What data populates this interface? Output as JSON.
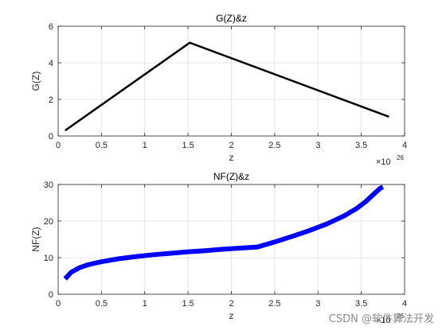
{
  "chart_data": [
    {
      "type": "line",
      "title": "G(Z)&z",
      "xlabel": "z",
      "ylabel": "G(Z)",
      "x_exponent": {
        "base": "×10",
        "power": "26"
      },
      "xlim": [
        0,
        4
      ],
      "ylim": [
        0,
        6
      ],
      "xticks": [
        0,
        0.5,
        1,
        1.5,
        2,
        2.5,
        3,
        3.5,
        4
      ],
      "xtick_labels": [
        "0",
        "0.5",
        "1",
        "1.5",
        "2",
        "2.5",
        "3",
        "3.5",
        "4"
      ],
      "yticks": [
        0,
        2,
        4,
        6
      ],
      "ytick_labels": [
        "0",
        "2",
        "4",
        "6"
      ],
      "grid": true,
      "series": [
        {
          "color": "#000000",
          "x": [
            0.08,
            1.52,
            3.82
          ],
          "y": [
            0.3,
            5.1,
            1.05
          ]
        }
      ]
    },
    {
      "type": "line",
      "title": "NF(Z)&z",
      "xlabel": "z",
      "ylabel": "NF(Z)",
      "x_exponent": {
        "base": "×10",
        "power": "26"
      },
      "xlim": [
        0,
        4
      ],
      "ylim": [
        0,
        30
      ],
      "xticks": [
        0,
        0.5,
        1,
        1.5,
        2,
        2.5,
        3,
        3.5,
        4
      ],
      "xtick_labels": [
        "0",
        "0.5",
        "1",
        "1.5",
        "2",
        "2.5",
        "3",
        "3.5",
        "4"
      ],
      "yticks": [
        0,
        10,
        20,
        30
      ],
      "ytick_labels": [
        "0",
        "10",
        "20",
        "30"
      ],
      "grid": true,
      "series": [
        {
          "color": "#0000ff",
          "x": [
            0.08,
            0.15,
            0.25,
            0.35,
            0.5,
            0.7,
            0.9,
            1.1,
            1.3,
            1.5,
            1.7,
            1.9,
            2.1,
            2.3,
            2.5,
            2.7,
            2.9,
            3.1,
            3.3,
            3.45,
            3.55,
            3.65,
            3.72,
            3.75
          ],
          "y": [
            4.2,
            6.0,
            7.3,
            8.1,
            8.9,
            9.7,
            10.3,
            10.8,
            11.2,
            11.6,
            11.9,
            12.3,
            12.6,
            12.9,
            14.3,
            15.8,
            17.4,
            19.2,
            21.4,
            23.5,
            25.3,
            27.5,
            29.0,
            29.3
          ]
        }
      ]
    }
  ],
  "watermark": "CSDN @软件算法开发"
}
